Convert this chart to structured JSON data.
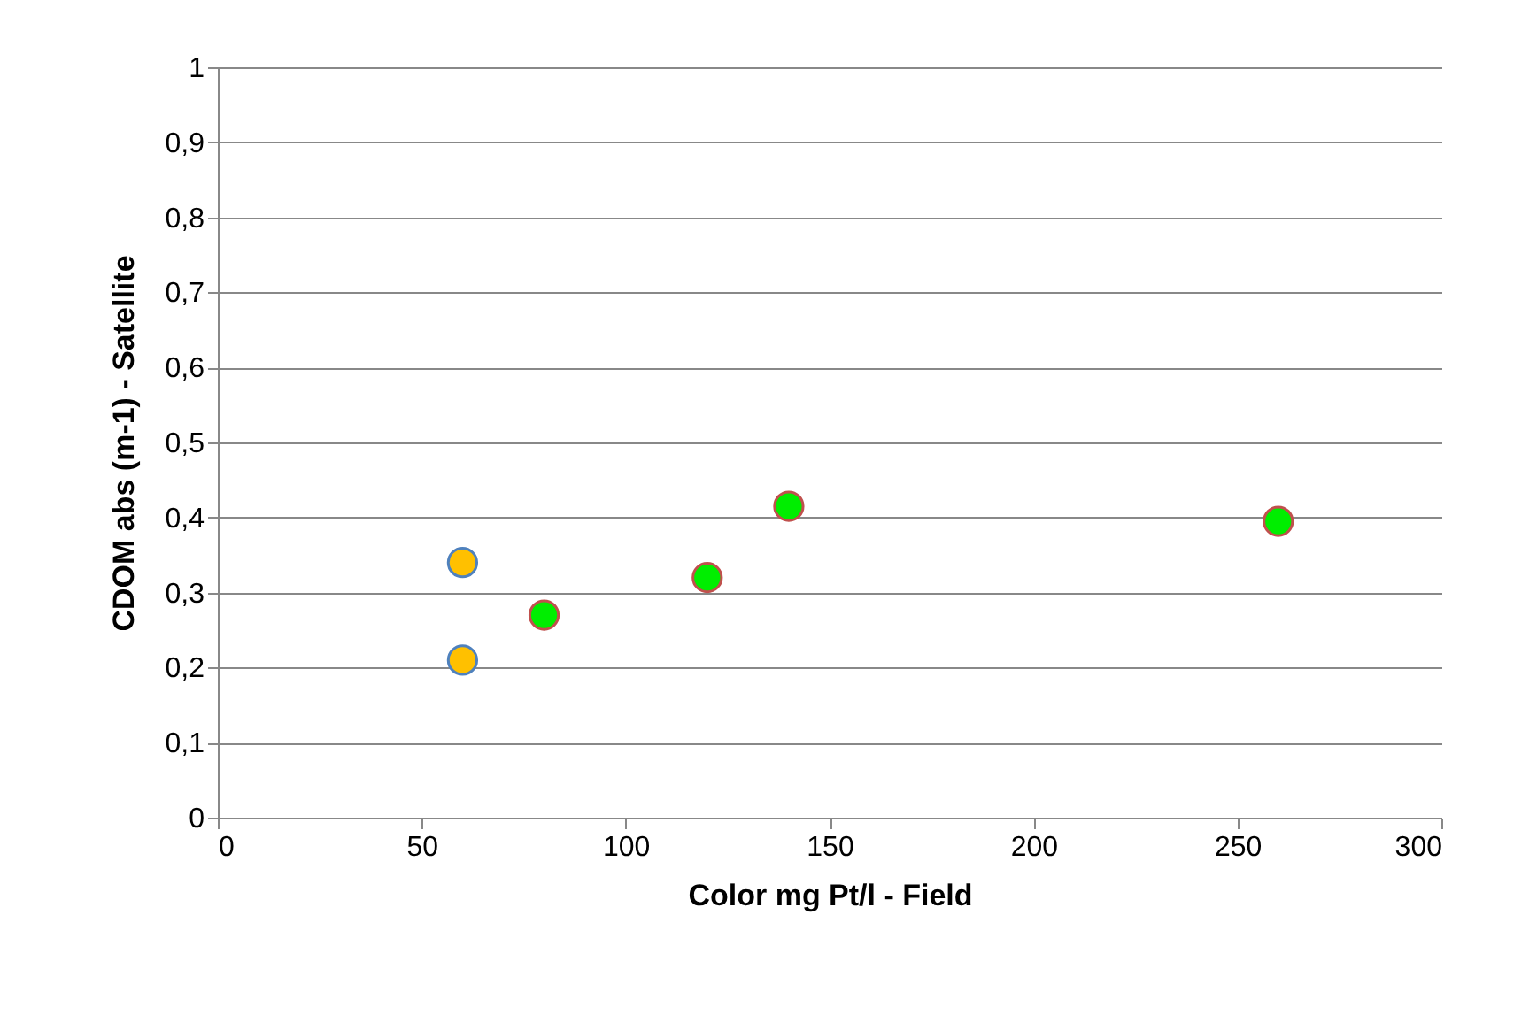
{
  "chart_data": {
    "type": "scatter",
    "xlabel": "Color mg Pt/l - Field",
    "ylabel": "CDOM abs (m-1) - Satellite",
    "series": [
      {
        "color": "#ffc000",
        "x": [
          60,
          60
        ],
        "values": [
          0.34,
          0.21
        ]
      },
      {
        "color": "#00ee00",
        "x": [
          80,
          120,
          140,
          260
        ],
        "values": [
          0.27,
          0.32,
          0.415,
          0.395
        ]
      }
    ],
    "xlim": [
      0,
      300
    ],
    "xticks": [
      0,
      50,
      100,
      150,
      200,
      250,
      300
    ],
    "ylim": [
      0,
      1
    ],
    "yticks": [
      0,
      {
        "value": 0.1,
        "label": "0,1"
      },
      {
        "value": 0.2,
        "label": "0,2"
      },
      {
        "value": 0.3,
        "label": "0,3"
      },
      {
        "value": 0.4,
        "label": "0,4"
      },
      {
        "value": 0.5,
        "label": "0,5"
      },
      {
        "value": 0.6,
        "label": "0,6"
      },
      {
        "value": 0.7,
        "label": "0,7"
      },
      {
        "value": 0.8,
        "label": "0,8"
      },
      {
        "value": 0.9,
        "label": "0,9"
      },
      1
    ],
    "grid": "y",
    "marker": "circle",
    "legend": false
  }
}
